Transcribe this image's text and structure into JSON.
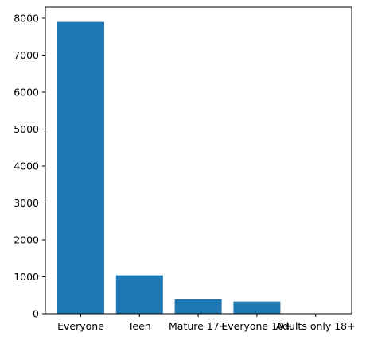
{
  "chart_data": {
    "type": "bar",
    "categories": [
      "Everyone",
      "Teen",
      "Mature 17+",
      "Everyone 10+",
      "Adults only 18+"
    ],
    "values": [
      7900,
      1040,
      390,
      330,
      3
    ],
    "yticks": [
      0,
      1000,
      2000,
      3000,
      4000,
      5000,
      6000,
      7000,
      8000
    ],
    "ylim": [
      0,
      8300
    ],
    "title": "",
    "xlabel": "",
    "ylabel": "",
    "grid": false,
    "bar_color": "#1f77b4"
  }
}
